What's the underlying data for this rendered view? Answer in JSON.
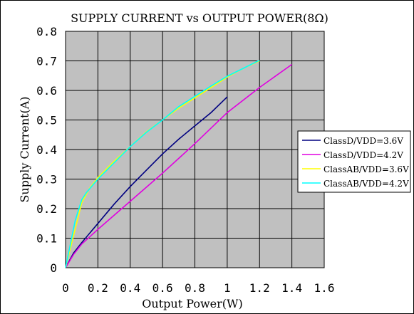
{
  "chart_data": {
    "type": "line",
    "title": "SUPPLY CURRENT vs OUTPUT POWER(8Ω)",
    "xlabel": "Output Power(W)",
    "ylabel": "Supply Current(A)",
    "xlim": [
      0,
      1.6
    ],
    "ylim": [
      0,
      0.8
    ],
    "xticks": [
      "0",
      "0.2",
      "0.4",
      "0.6",
      "0.8",
      "1",
      "1.2",
      "1.4",
      "1.6"
    ],
    "yticks": [
      "0",
      "0.1",
      "0.2",
      "0.3",
      "0.4",
      "0.5",
      "0.6",
      "0.7",
      "0.8"
    ],
    "grid": true,
    "legend_position": "right",
    "plot_background": "#c0c0c0",
    "series": [
      {
        "name": "ClassD/VDD=3.6V",
        "color": "#000080",
        "points": [
          [
            0,
            0
          ],
          [
            0.05,
            0.05
          ],
          [
            0.1,
            0.085
          ],
          [
            0.2,
            0.15
          ],
          [
            0.3,
            0.215
          ],
          [
            0.4,
            0.275
          ],
          [
            0.5,
            0.33
          ],
          [
            0.6,
            0.385
          ],
          [
            0.7,
            0.435
          ],
          [
            0.8,
            0.48
          ],
          [
            0.9,
            0.525
          ],
          [
            1.0,
            0.578
          ]
        ]
      },
      {
        "name": "ClassD/VDD=4.2V",
        "color": "#e000e0",
        "points": [
          [
            0,
            0
          ],
          [
            0.05,
            0.045
          ],
          [
            0.1,
            0.08
          ],
          [
            0.2,
            0.13
          ],
          [
            0.4,
            0.225
          ],
          [
            0.6,
            0.32
          ],
          [
            0.8,
            0.42
          ],
          [
            1.0,
            0.525
          ],
          [
            1.2,
            0.61
          ],
          [
            1.4,
            0.688
          ]
        ]
      },
      {
        "name": "ClassAB/VDD=3.6V",
        "color": "#ffff00",
        "points": [
          [
            0,
            0
          ],
          [
            0.05,
            0.11
          ],
          [
            0.1,
            0.22
          ],
          [
            0.15,
            0.27
          ],
          [
            0.2,
            0.305
          ],
          [
            0.3,
            0.36
          ],
          [
            0.4,
            0.41
          ],
          [
            0.5,
            0.46
          ],
          [
            0.6,
            0.5
          ],
          [
            0.7,
            0.54
          ],
          [
            0.8,
            0.575
          ],
          [
            0.9,
            0.61
          ],
          [
            1.0,
            0.645
          ],
          [
            1.1,
            0.675
          ],
          [
            1.2,
            0.7
          ]
        ]
      },
      {
        "name": "ClassAB/VDD=4.2V",
        "color": "#00ffff",
        "points": [
          [
            0,
            0
          ],
          [
            0.03,
            0.08
          ],
          [
            0.06,
            0.16
          ],
          [
            0.1,
            0.23
          ],
          [
            0.13,
            0.255
          ],
          [
            0.2,
            0.3
          ],
          [
            0.3,
            0.355
          ],
          [
            0.4,
            0.41
          ],
          [
            0.5,
            0.458
          ],
          [
            0.6,
            0.5
          ],
          [
            0.7,
            0.545
          ],
          [
            0.8,
            0.58
          ],
          [
            0.9,
            0.615
          ],
          [
            1.0,
            0.648
          ],
          [
            1.1,
            0.675
          ],
          [
            1.2,
            0.702
          ]
        ]
      }
    ]
  }
}
